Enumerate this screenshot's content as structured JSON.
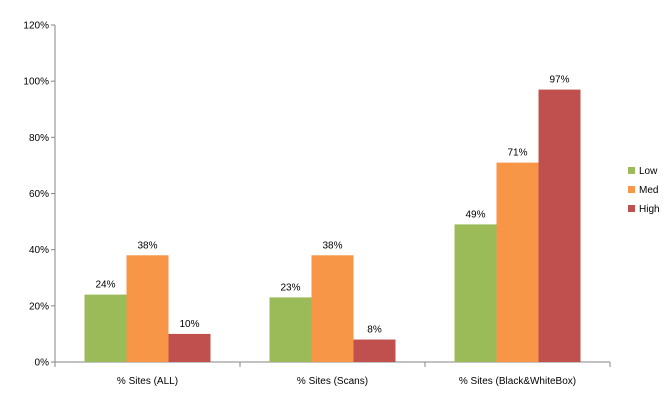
{
  "chart_data": {
    "type": "bar",
    "categories": [
      "% Sites (ALL)",
      "% Sites (Scans)",
      "% Sites (Black&WhiteBox)"
    ],
    "series": [
      {
        "name": "Low",
        "values": [
          24,
          23,
          49
        ],
        "labels": [
          "24%",
          "23%",
          "49%"
        ],
        "color": "#9BBB59"
      },
      {
        "name": "Med",
        "values": [
          38,
          38,
          71
        ],
        "labels": [
          "38%",
          "38%",
          "71%"
        ],
        "color": "#F79646"
      },
      {
        "name": "High",
        "values": [
          10,
          8,
          97
        ],
        "labels": [
          "10%",
          "8%",
          "97%"
        ],
        "color": "#C0504D"
      }
    ],
    "y_ticks": [
      "0%",
      "20%",
      "40%",
      "60%",
      "80%",
      "100%",
      "120%"
    ],
    "ylim": [
      0,
      120
    ],
    "grid": false,
    "legend_position": "right",
    "title": "",
    "xlabel": "",
    "ylabel": ""
  }
}
